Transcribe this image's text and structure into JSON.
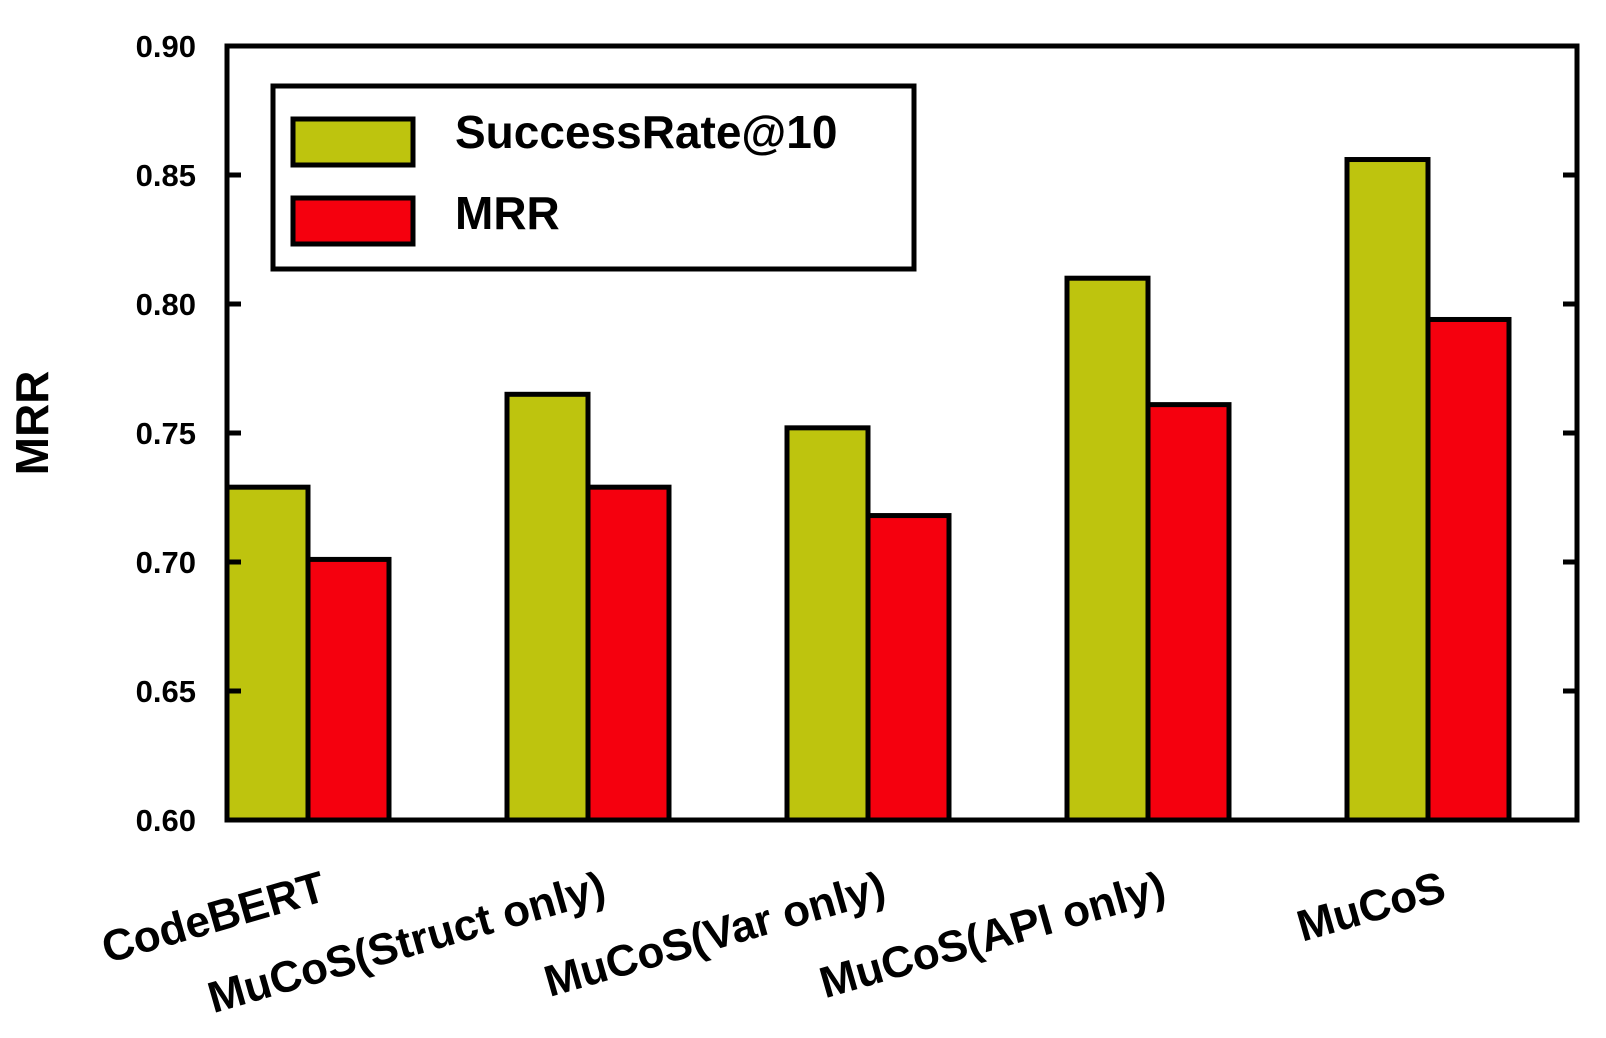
{
  "chart_data": {
    "type": "bar",
    "title": "",
    "xlabel": "",
    "ylabel": "MRR",
    "ylim": [
      0.6,
      0.9
    ],
    "yticks": [
      "0.60",
      "0.65",
      "0.70",
      "0.75",
      "0.80",
      "0.85",
      "0.90"
    ],
    "categories": [
      "CodeBERT",
      "MuCoS(Struct only)",
      "MuCoS(Var only)",
      "MuCoS(API only)",
      "MuCoS"
    ],
    "series": [
      {
        "name": "SuccessRate@10",
        "color": "#bec40e",
        "values": [
          0.729,
          0.765,
          0.752,
          0.81,
          0.856
        ]
      },
      {
        "name": "MRR",
        "color": "#f5000e",
        "values": [
          0.701,
          0.729,
          0.718,
          0.761,
          0.794
        ]
      }
    ],
    "legend": {
      "position": "top-left"
    },
    "grid": false
  }
}
